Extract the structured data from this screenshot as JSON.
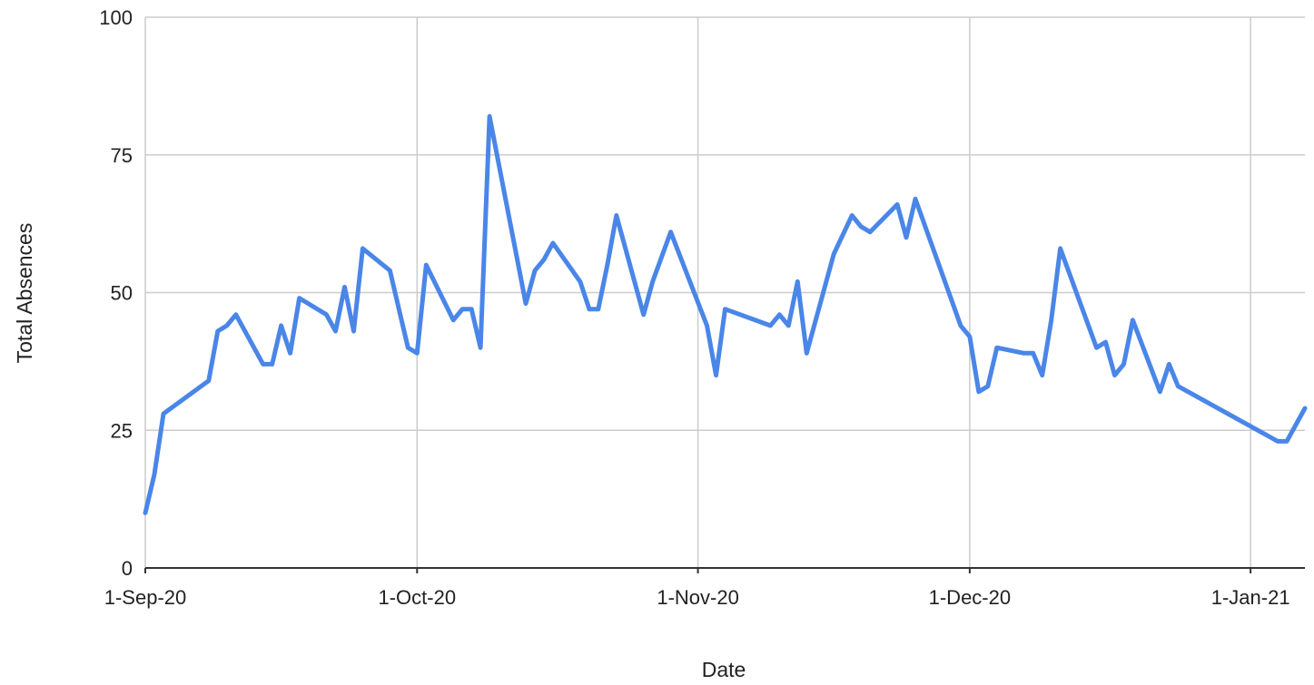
{
  "chart_data": {
    "type": "line",
    "title": "",
    "xlabel": "Date",
    "ylabel": "Total Absences",
    "x_type": "date",
    "xlim": [
      "2020-09-01",
      "2021-01-07"
    ],
    "ylim": [
      0,
      100
    ],
    "y_ticks": [
      0,
      25,
      50,
      75,
      100
    ],
    "x_ticks": [
      {
        "date": "2020-09-01",
        "label": "1-Sep-20"
      },
      {
        "date": "2020-10-01",
        "label": "1-Oct-20"
      },
      {
        "date": "2020-11-01",
        "label": "1-Nov-20"
      },
      {
        "date": "2020-12-01",
        "label": "1-Dec-20"
      },
      {
        "date": "2021-01-01",
        "label": "1-Jan-21"
      }
    ],
    "grid": true,
    "legend": "none",
    "series": [
      {
        "color": "#4a86e8",
        "points": [
          [
            "2020-09-01",
            10
          ],
          [
            "2020-09-02",
            17
          ],
          [
            "2020-09-03",
            28
          ],
          [
            "2020-09-08",
            34
          ],
          [
            "2020-09-09",
            43
          ],
          [
            "2020-09-10",
            44
          ],
          [
            "2020-09-11",
            46
          ],
          [
            "2020-09-14",
            37
          ],
          [
            "2020-09-15",
            37
          ],
          [
            "2020-09-16",
            44
          ],
          [
            "2020-09-17",
            39
          ],
          [
            "2020-09-18",
            49
          ],
          [
            "2020-09-21",
            46
          ],
          [
            "2020-09-22",
            43
          ],
          [
            "2020-09-23",
            51
          ],
          [
            "2020-09-24",
            43
          ],
          [
            "2020-09-25",
            58
          ],
          [
            "2020-09-28",
            54
          ],
          [
            "2020-09-29",
            47
          ],
          [
            "2020-09-30",
            40
          ],
          [
            "2020-10-01",
            39
          ],
          [
            "2020-10-02",
            55
          ],
          [
            "2020-10-05",
            45
          ],
          [
            "2020-10-06",
            47
          ],
          [
            "2020-10-07",
            47
          ],
          [
            "2020-10-08",
            40
          ],
          [
            "2020-10-09",
            82
          ],
          [
            "2020-10-13",
            48
          ],
          [
            "2020-10-14",
            54
          ],
          [
            "2020-10-15",
            56
          ],
          [
            "2020-10-16",
            59
          ],
          [
            "2020-10-19",
            52
          ],
          [
            "2020-10-20",
            47
          ],
          [
            "2020-10-21",
            47
          ],
          [
            "2020-10-22",
            55
          ],
          [
            "2020-10-23",
            64
          ],
          [
            "2020-10-26",
            46
          ],
          [
            "2020-10-27",
            52
          ],
          [
            "2020-10-29",
            61
          ],
          [
            "2020-11-02",
            44
          ],
          [
            "2020-11-03",
            35
          ],
          [
            "2020-11-04",
            47
          ],
          [
            "2020-11-09",
            44
          ],
          [
            "2020-11-10",
            46
          ],
          [
            "2020-11-11",
            44
          ],
          [
            "2020-11-12",
            52
          ],
          [
            "2020-11-13",
            39
          ],
          [
            "2020-11-16",
            57
          ],
          [
            "2020-11-18",
            64
          ],
          [
            "2020-11-19",
            62
          ],
          [
            "2020-11-20",
            61
          ],
          [
            "2020-11-23",
            66
          ],
          [
            "2020-11-24",
            60
          ],
          [
            "2020-11-25",
            67
          ],
          [
            "2020-11-30",
            44
          ],
          [
            "2020-12-01",
            42
          ],
          [
            "2020-12-02",
            32
          ],
          [
            "2020-12-03",
            33
          ],
          [
            "2020-12-04",
            40
          ],
          [
            "2020-12-07",
            39
          ],
          [
            "2020-12-08",
            39
          ],
          [
            "2020-12-09",
            35
          ],
          [
            "2020-12-10",
            45
          ],
          [
            "2020-12-11",
            58
          ],
          [
            "2020-12-15",
            40
          ],
          [
            "2020-12-16",
            41
          ],
          [
            "2020-12-17",
            35
          ],
          [
            "2020-12-18",
            37
          ],
          [
            "2020-12-19",
            45
          ],
          [
            "2020-12-22",
            32
          ],
          [
            "2020-12-23",
            37
          ],
          [
            "2020-12-24",
            33
          ],
          [
            "2021-01-04",
            23
          ],
          [
            "2021-01-05",
            23
          ],
          [
            "2021-01-07",
            29
          ]
        ]
      }
    ]
  }
}
